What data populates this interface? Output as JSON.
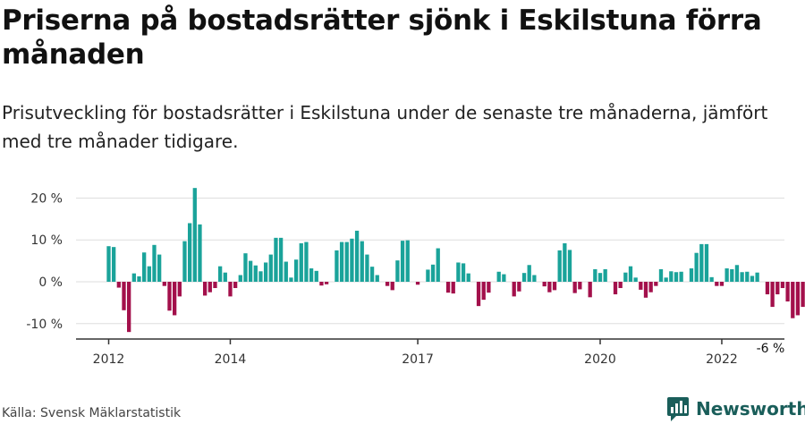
{
  "title": "Priserna på bostadsrätter sjönk i Eskilstuna förra månaden",
  "subtitle": "Prisutveckling för bostadsrätter i Eskilstuna under de senaste tre månaderna, jämfört med tre månader tidigare.",
  "source": "Källa: Svensk Mäklarstatistik",
  "brand": {
    "name": "Newsworthy",
    "icon": "newsworthy-logo-icon",
    "color": "#1a5e5a"
  },
  "colors": {
    "positive": "#1aa39a",
    "negative": "#a3104b",
    "axis": "#333333",
    "grid": "#dddddd"
  },
  "chart_data": {
    "type": "bar",
    "ylim": [
      -13,
      25
    ],
    "yticks": [
      -10,
      0,
      10,
      20
    ],
    "ytick_labels": [
      "-10 %",
      "0 %",
      "10 %",
      "20 %"
    ],
    "xticks": [
      {
        "label": "2012",
        "index": 0
      },
      {
        "label": "2014",
        "index": 24
      },
      {
        "label": "2017",
        "index": 61
      },
      {
        "label": "2020",
        "index": 97
      },
      {
        "label": "2022",
        "index": 121
      }
    ],
    "annotation": {
      "text": "-6 %",
      "index": 131
    },
    "grid": true,
    "legend": "none",
    "series": [
      {
        "values": [
          8.5,
          8.3,
          -1.4,
          -6.8,
          -12,
          2,
          1.3,
          7,
          3.7,
          8.8,
          6.5,
          -1,
          -6.9,
          -8,
          -3.5,
          9.7,
          14,
          22.4,
          13.7,
          -3.3,
          -2.5,
          -1.5,
          3.7,
          2.2,
          -3.5,
          -1.5,
          1.6,
          6.8,
          5,
          3.9,
          2.5,
          4.6,
          6.5,
          10.5,
          10.5,
          4.8,
          1,
          5.3,
          9.2,
          9.5,
          3.2,
          2.6,
          -0.9,
          -0.6,
          0,
          7.5,
          9.5,
          9.5,
          10.3,
          12.2,
          9.7,
          6.5,
          3.6,
          1.6,
          0,
          -1,
          -2,
          5.1,
          9.8,
          9.9,
          0,
          -0.7,
          0,
          2.9,
          4.1,
          8,
          0,
          -2.6,
          -2.8,
          4.6,
          4.4,
          2,
          0,
          -5.8,
          -4.3,
          -2.6,
          0,
          2.4,
          1.8,
          0,
          -3.5,
          -2.3,
          2.1,
          4,
          1.6,
          0,
          -1.1,
          -2.5,
          -2,
          7.5,
          9.2,
          7.6,
          -2.7,
          -1.8,
          0,
          -3.7,
          3,
          2.1,
          3,
          0,
          -3,
          -1.5,
          2.2,
          3.7,
          1,
          -1.9,
          -3.8,
          -2.5,
          -1,
          3,
          1,
          2.5,
          2.3,
          2.4,
          0,
          3.2,
          6.9,
          9,
          9,
          1.1,
          -1,
          -1,
          3.2,
          3,
          4,
          2.3,
          2.4,
          1.4,
          2.2,
          0,
          -3,
          -6,
          -3,
          -1.5,
          -4.7,
          -8.7,
          -8,
          -6
        ]
      }
    ]
  }
}
